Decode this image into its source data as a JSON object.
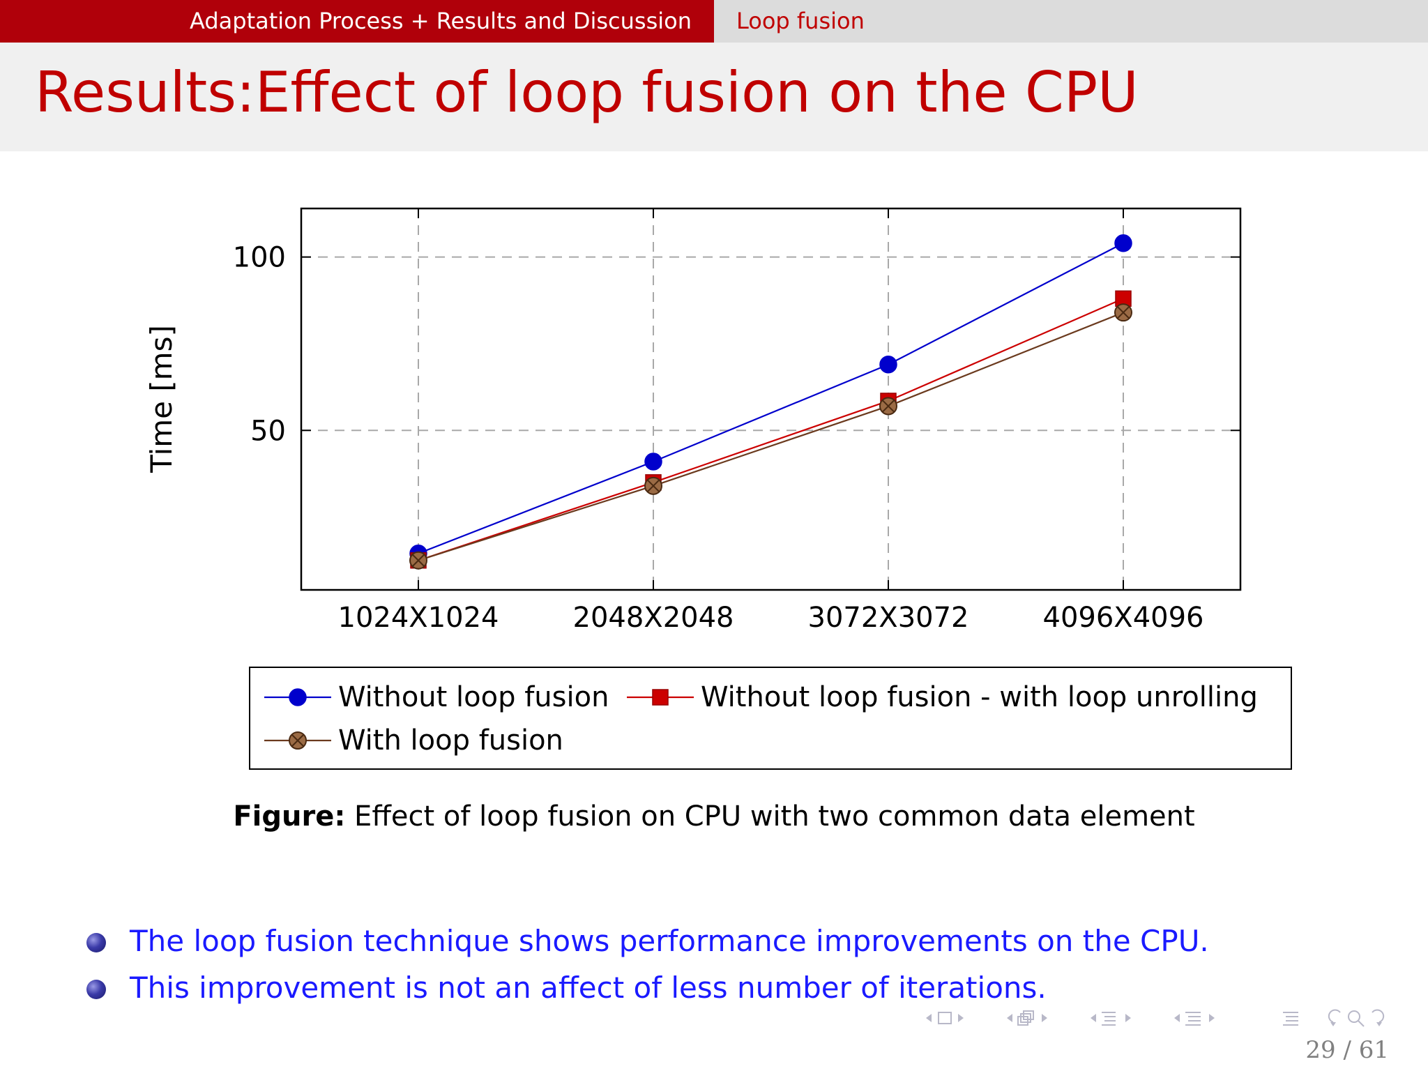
{
  "header": {
    "section": "Adaptation Process + Results and Discussion",
    "subsection": "Loop fusion"
  },
  "frame": {
    "title": "Results:Effect of loop fusion on the CPU"
  },
  "chart_data": {
    "type": "line",
    "categories": [
      "1024X1024",
      "2048X2048",
      "3072X3072",
      "4096X4096"
    ],
    "ylabel": "Time [ms]",
    "xlabel": "",
    "ylim": [
      4,
      114
    ],
    "yticks": [
      50,
      100
    ],
    "grid": true,
    "grid_style": "dashed",
    "legend_placement": "below",
    "series": [
      {
        "name": "Without loop fusion",
        "values": [
          14.5,
          41,
          69,
          104
        ],
        "color": "#0000cc",
        "marker": "circle"
      },
      {
        "name": "Without loop fusion - with loop unrolling",
        "values": [
          12.5,
          35,
          58.5,
          88
        ],
        "color": "#cc0000",
        "marker": "square"
      },
      {
        "name": "With loop fusion",
        "values": [
          12.5,
          34,
          57,
          84
        ],
        "color": "#6b3a1e",
        "marker": "otimes"
      }
    ]
  },
  "caption": {
    "label": "Figure:",
    "text": "Effect of loop fusion on CPU with two common data element"
  },
  "bullets": [
    "The loop fusion technique shows performance improvements on the CPU.",
    "This improvement is not an affect of less number of iterations."
  ],
  "footer": {
    "page": "29 / 61"
  },
  "colors": {
    "nav_red": "#b0000a",
    "title_red": "#c00000",
    "bullet_blue": "#1a1aff"
  }
}
